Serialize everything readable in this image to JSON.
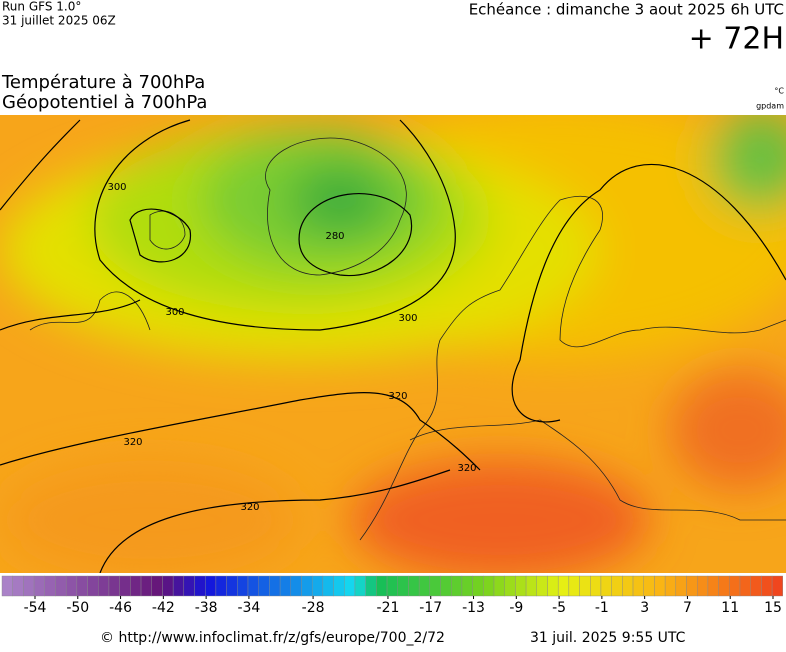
{
  "header": {
    "run": "Run GFS 1.0°",
    "run_date": "31 juillet 2025 06Z",
    "valid": "Echéance : dimanche 3 aout 2025 6h UTC",
    "lead": "+ 72H",
    "title_temp": "Température à 700hPa",
    "title_geo": "Géopotentiel à 700hPa",
    "unit_temp": "°C",
    "unit_geo": "gpdam"
  },
  "map": {
    "contour_labels": [
      "300",
      "280",
      "300",
      "300",
      "320",
      "320",
      "320",
      "320"
    ]
  },
  "colorbar": {
    "ticks": [
      -54,
      -50,
      -46,
      -42,
      -38,
      -34,
      -28,
      -21,
      -17,
      -13,
      -9,
      -5,
      -1,
      3,
      7,
      11,
      15
    ]
  },
  "footer": {
    "source": "© http://www.infoclimat.fr/z/gfs/europe/700_2/72",
    "generated": "31 juil. 2025  9:55 UTC"
  }
}
